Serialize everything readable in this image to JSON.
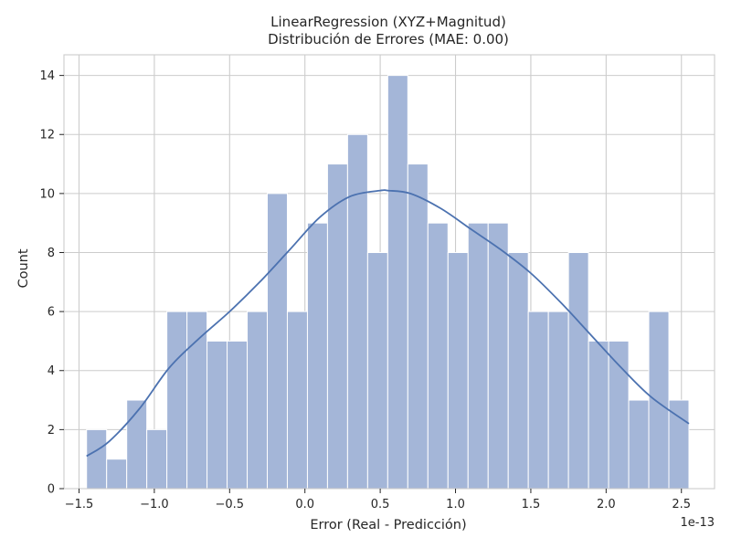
{
  "chart_data": {
    "type": "bar",
    "subtype": "histogram",
    "title": "LinearRegression (XYZ+Magnitud)",
    "subtitle": "Distribución de Errores (MAE: 0.00)",
    "xlabel": "Error (Real - Predicción)",
    "ylabel": "Count",
    "x_offset_label": "1e-13",
    "xlim": [
      -1.6,
      2.72
    ],
    "ylim": [
      0,
      14.7
    ],
    "xticks": [
      -1.5,
      -1.0,
      -0.5,
      0.0,
      0.5,
      1.0,
      1.5,
      2.0,
      2.5
    ],
    "xtick_labels": [
      "−1.5",
      "−1.0",
      "−0.5",
      "0.0",
      "0.5",
      "1.0",
      "1.5",
      "2.0",
      "2.5"
    ],
    "yticks": [
      0,
      2,
      4,
      6,
      8,
      10,
      12,
      14
    ],
    "ytick_labels": [
      "0",
      "2",
      "4",
      "6",
      "8",
      "10",
      "12",
      "14"
    ],
    "grid": true,
    "bin_edges": [
      -1.45,
      -1.3167,
      -1.1833,
      -1.05,
      -0.9167,
      -0.7833,
      -0.65,
      -0.5167,
      -0.3833,
      -0.25,
      -0.1167,
      0.0167,
      0.15,
      0.2833,
      0.4167,
      0.55,
      0.6833,
      0.8167,
      0.95,
      1.0833,
      1.2167,
      1.35,
      1.4833,
      1.6167,
      1.75,
      1.8833,
      2.0167,
      2.15,
      2.2833,
      2.4167,
      2.55
    ],
    "counts": [
      2,
      1,
      3,
      2,
      6,
      6,
      5,
      5,
      6,
      10,
      6,
      9,
      11,
      12,
      8,
      14,
      11,
      9,
      8,
      9,
      9,
      8,
      6,
      6,
      8,
      5,
      5,
      3,
      6,
      3
    ],
    "kde": {
      "x": [
        -1.45,
        -1.3,
        -1.1,
        -0.9,
        -0.7,
        -0.5,
        -0.3,
        -0.1,
        0.1,
        0.3,
        0.5,
        0.55,
        0.7,
        0.9,
        1.1,
        1.3,
        1.5,
        1.7,
        1.9,
        2.1,
        2.3,
        2.55
      ],
      "y": [
        1.1,
        1.6,
        2.7,
        4.1,
        5.1,
        6.0,
        7.0,
        8.1,
        9.2,
        9.9,
        10.1,
        10.1,
        10.0,
        9.5,
        8.8,
        8.1,
        7.3,
        6.3,
        5.2,
        4.1,
        3.1,
        2.2
      ]
    },
    "colors": {
      "bar_fill": "#a4b6d8",
      "kde_line": "#4c72b0",
      "grid": "#cccccc",
      "text": "#262626"
    }
  }
}
